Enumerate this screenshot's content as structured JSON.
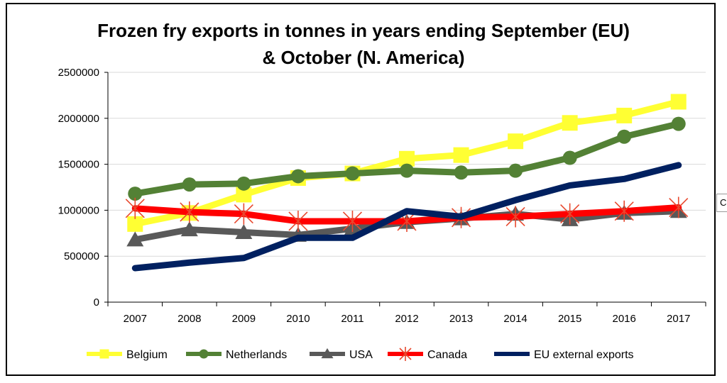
{
  "chart_data": {
    "type": "line",
    "title_lines": [
      "Frozen fry exports in tonnes in years ending September (EU)",
      "& October (N. America)"
    ],
    "xlabel": "",
    "ylabel": "",
    "categories": [
      "2007",
      "2008",
      "2009",
      "2010",
      "2011",
      "2012",
      "2013",
      "2014",
      "2015",
      "2016",
      "2017"
    ],
    "ylim": [
      0,
      2500000
    ],
    "yticks": [
      "0",
      "500000",
      "1000000",
      "1500000",
      "2000000",
      "2500000"
    ],
    "grid": true,
    "legend_position": "bottom",
    "series": [
      {
        "name": "Belgium",
        "color": "#FFFF33",
        "marker": "square",
        "values": [
          850000,
          970000,
          1170000,
          1350000,
          1400000,
          1560000,
          1600000,
          1750000,
          1950000,
          2030000,
          2180000
        ]
      },
      {
        "name": "Netherlands",
        "color": "#538135",
        "marker": "circle",
        "values": [
          1180000,
          1280000,
          1290000,
          1370000,
          1400000,
          1430000,
          1410000,
          1430000,
          1570000,
          1800000,
          1940000
        ]
      },
      {
        "name": "USA",
        "color": "#595959",
        "marker": "triangle",
        "values": [
          680000,
          790000,
          760000,
          730000,
          800000,
          870000,
          910000,
          960000,
          900000,
          970000,
          990000
        ]
      },
      {
        "name": "Canada",
        "color": "#FF0000",
        "marker": "star",
        "values": [
          1020000,
          980000,
          960000,
          880000,
          880000,
          880000,
          920000,
          930000,
          960000,
          990000,
          1030000
        ]
      },
      {
        "name": "EU external exports",
        "color": "#002060",
        "marker": "none",
        "values": [
          370000,
          430000,
          480000,
          700000,
          700000,
          990000,
          930000,
          1110000,
          1270000,
          1340000,
          1490000
        ]
      }
    ]
  },
  "side_stub_label": "C"
}
